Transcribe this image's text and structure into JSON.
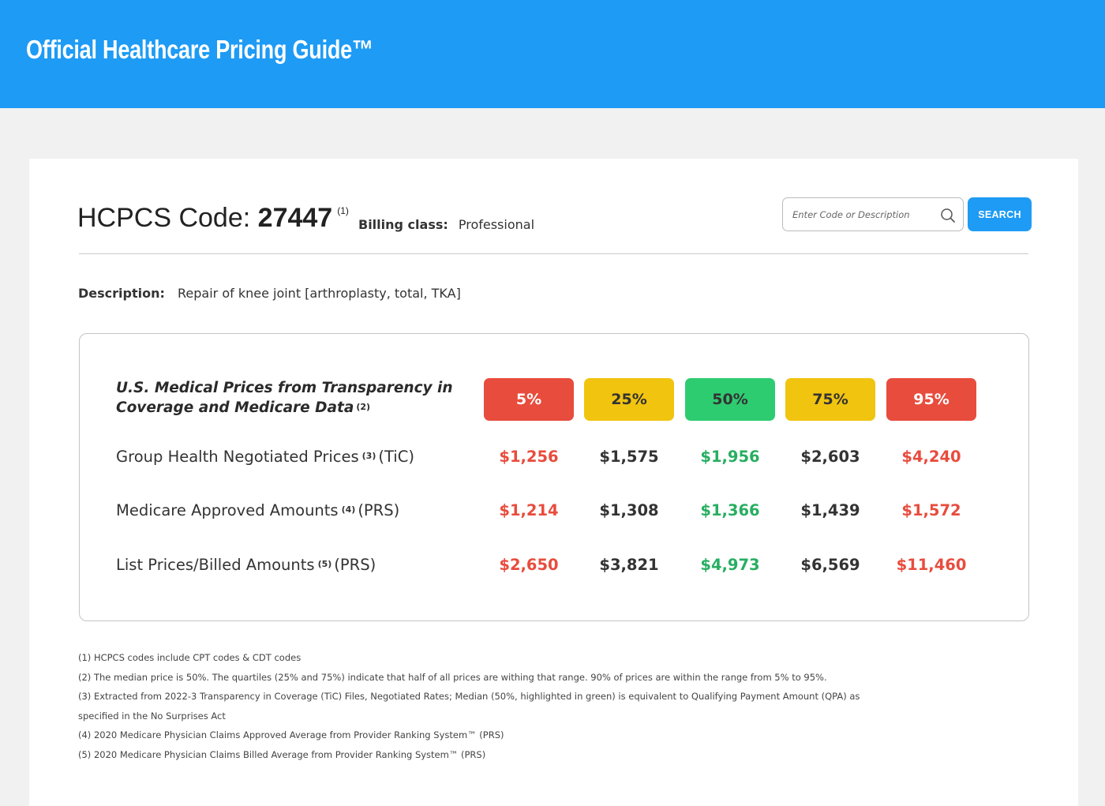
{
  "header": {
    "title": "Official Healthcare Pricing Guide™"
  },
  "code": {
    "label": "HCPCS Code:",
    "value": "27447",
    "note_ref": "(1)",
    "billing_label": "Billing class:",
    "billing_value": "Professional"
  },
  "search": {
    "placeholder": "Enter Code or Description",
    "value": "",
    "button_label": "SEARCH"
  },
  "description": {
    "label": "Description:",
    "value": "Repair of knee joint [arthroplasty, total, TKA]"
  },
  "prices": {
    "title": "U.S. Medical Prices from Transparency in Coverage and Medicare Data",
    "title_ref": "(2)",
    "percentiles": [
      {
        "label": "5%",
        "bg": "#e84c3d",
        "fg": "#ffffff"
      },
      {
        "label": "25%",
        "bg": "#f1c40f",
        "fg": "#333333"
      },
      {
        "label": "50%",
        "bg": "#2ecc71",
        "fg": "#333333"
      },
      {
        "label": "75%",
        "bg": "#f1c40f",
        "fg": "#333333"
      },
      {
        "label": "95%",
        "bg": "#e84c3d",
        "fg": "#ffffff"
      }
    ],
    "value_colors": [
      "#e84c3d",
      "#333333",
      "#27ae60",
      "#333333",
      "#e84c3d"
    ],
    "rows": [
      {
        "label": "Group Health Negotiated Prices",
        "ref": "(3)",
        "suffix": "(TiC)",
        "values": [
          "$1,256",
          "$1,575",
          "$1,956",
          "$2,603",
          "$4,240"
        ]
      },
      {
        "label": "Medicare Approved Amounts",
        "ref": "(4)",
        "suffix": "(PRS)",
        "values": [
          "$1,214",
          "$1,308",
          "$1,366",
          "$1,439",
          "$1,572"
        ]
      },
      {
        "label": "List Prices/Billed Amounts",
        "ref": "(5)",
        "suffix": "(PRS)",
        "values": [
          "$2,650",
          "$3,821",
          "$4,973",
          "$6,569",
          "$11,460"
        ]
      }
    ]
  },
  "footnotes": [
    "(1) HCPCS codes include CPT codes & CDT codes",
    "(2) The median price is 50%. The quartiles (25% and 75%) indicate that half of all prices are withing that range. 90% of prices are within the range from 5% to 95%.",
    "(3) Extracted from 2022-3 Transparency in Coverage (TiC) Files, Negotiated Rates; Median (50%, highlighted in green) is equivalent to Qualifying Payment Amount (QPA) as",
    "specified in the No Surprises Act",
    "(4) 2020 Medicare Physician Claims Approved Average from Provider Ranking System™ (PRS)",
    "(5) 2020 Medicare Physician Claims Billed Average from Provider Ranking System™ (PRS)"
  ]
}
